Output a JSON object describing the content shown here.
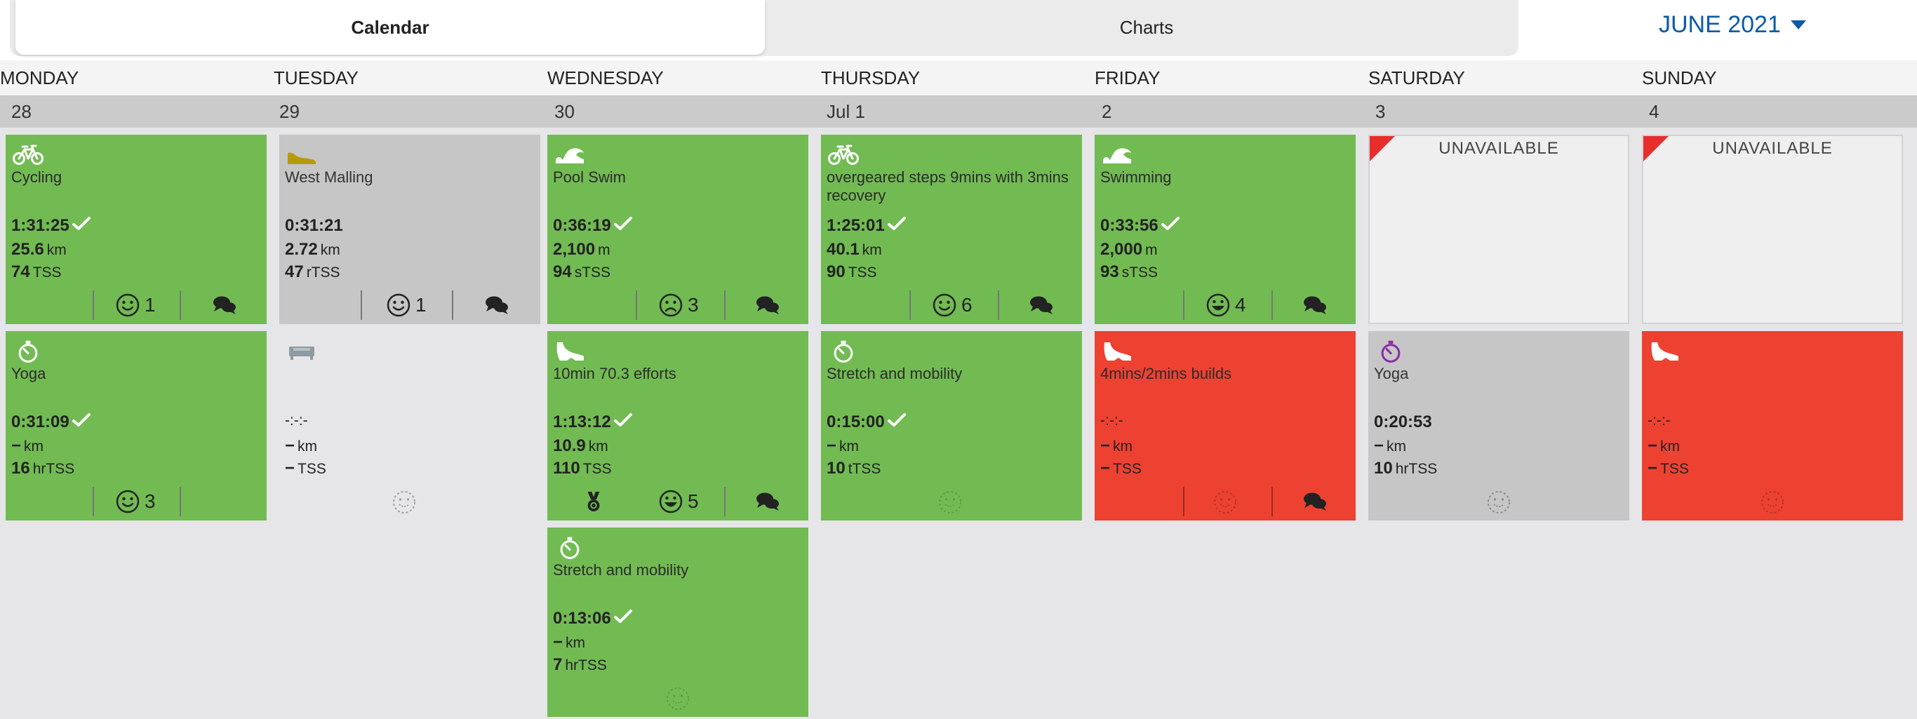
{
  "tabs": {
    "calendar": "Calendar",
    "charts": "Charts"
  },
  "month": "JUNE 2021",
  "days": [
    "MONDAY",
    "TUESDAY",
    "WEDNESDAY",
    "THURSDAY",
    "FRIDAY",
    "SATURDAY",
    "SUNDAY"
  ],
  "dates": [
    "28",
    "29",
    "30",
    "Jul 1",
    "2",
    "3",
    "4"
  ],
  "colors": {
    "completed": "#72bb53",
    "planned": "#c6c6c6",
    "missed": "#ed4132",
    "accent": "#0a5aa8",
    "yoga_purple": "#8a2aa5"
  },
  "cards": {
    "mon1": {
      "icon": "bike-icon",
      "title": "Cycling",
      "duration": "1:31:25",
      "distance": "25.6",
      "distance_unit": "km",
      "load": "74",
      "load_unit": "TSS",
      "feel": "1"
    },
    "mon2": {
      "icon": "stopwatch-icon",
      "title": "Yoga",
      "duration": "0:31:09",
      "distance": "−",
      "distance_unit": "km",
      "load": "16",
      "load_unit": "hrTSS",
      "feel": "3"
    },
    "tue1": {
      "icon": "shoe-icon",
      "title": "West Malling",
      "duration": "0:31:21",
      "distance": "2.72",
      "distance_unit": "km",
      "load": "47",
      "load_unit": "rTSS",
      "feel": "1"
    },
    "tue2": {
      "icon": "strength-icon",
      "title": "",
      "duration": "-:-:-",
      "distance": "−",
      "distance_unit": "km",
      "load": "−",
      "load_unit": "TSS"
    },
    "wed1": {
      "icon": "swim-icon",
      "title": "Pool Swim",
      "duration": "0:36:19",
      "distance": "2,100",
      "distance_unit": "m",
      "load": "94",
      "load_unit": "sTSS",
      "feel": "3"
    },
    "wed2": {
      "icon": "run-icon",
      "title": "10min 70.3 efforts",
      "duration": "1:13:12",
      "distance": "10.9",
      "distance_unit": "km",
      "load": "110",
      "load_unit": "TSS",
      "feel": "5"
    },
    "wed3": {
      "icon": "stopwatch-icon",
      "title": "Stretch and mobility",
      "duration": "0:13:06",
      "distance": "−",
      "distance_unit": "km",
      "load": "7",
      "load_unit": "hrTSS"
    },
    "thu1": {
      "icon": "bike-icon",
      "title": "overgeared steps 9mins with 3mins recovery",
      "duration": "1:25:01",
      "distance": "40.1",
      "distance_unit": "km",
      "load": "90",
      "load_unit": "TSS",
      "feel": "6"
    },
    "thu2": {
      "icon": "stopwatch-icon",
      "title": "Stretch and mobility",
      "duration": "0:15:00",
      "distance": "−",
      "distance_unit": "km",
      "load": "10",
      "load_unit": "tTSS"
    },
    "fri1": {
      "icon": "swim-icon",
      "title": "Swimming",
      "duration": "0:33:56",
      "distance": "2,000",
      "distance_unit": "m",
      "load": "93",
      "load_unit": "sTSS",
      "feel": "4"
    },
    "fri2": {
      "icon": "run-icon",
      "title": "4mins/2mins builds",
      "duration": "-:-:-",
      "distance": "−",
      "distance_unit": "km",
      "load": "−",
      "load_unit": "TSS"
    },
    "sat1": {
      "label": "UNAVAILABLE"
    },
    "sat2": {
      "icon": "stopwatch-icon",
      "title": "Yoga",
      "duration": "0:20:53",
      "distance": "−",
      "distance_unit": "km",
      "load": "10",
      "load_unit": "hrTSS"
    },
    "sun1": {
      "label": "UNAVAILABLE"
    },
    "sun2": {
      "icon": "run-icon",
      "title": "",
      "duration": "-:-:-",
      "distance": "−",
      "distance_unit": "km",
      "load": "−",
      "load_unit": "TSS"
    }
  }
}
